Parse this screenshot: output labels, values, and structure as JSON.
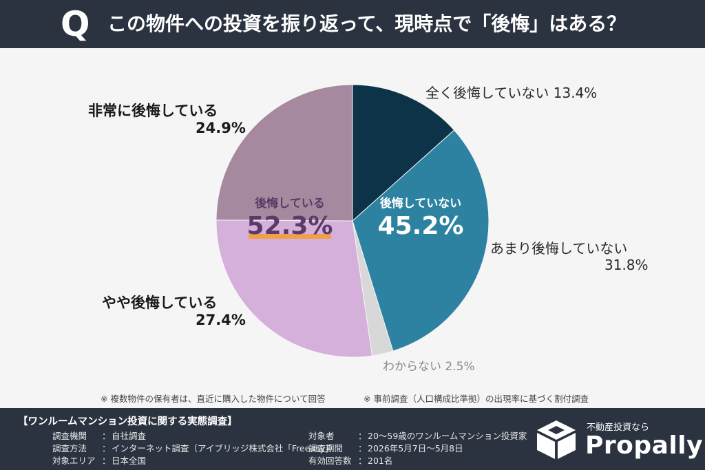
{
  "header": {
    "q": "Q",
    "question": "この物件への投資を振り返って、現時点で「後悔」はある？"
  },
  "chart_data": {
    "type": "pie",
    "start": "12 o'clock",
    "direction": "clockwise",
    "slices": [
      {
        "label": "全く後悔していない",
        "value": 13.4,
        "value_text": "13.4%",
        "color": "#0d3349"
      },
      {
        "label": "あまり後悔していない",
        "value": 31.8,
        "value_text": "31.8%",
        "color": "#2e82a1"
      },
      {
        "label": "わからない",
        "value": 2.5,
        "value_text": "2.5%",
        "color": "#d8d8d8"
      },
      {
        "label": "やや後悔している",
        "value": 27.4,
        "value_text": "27.4%",
        "color": "#d5b0da"
      },
      {
        "label": "非常に後悔している",
        "value": 24.9,
        "value_text": "24.9%",
        "color": "#a6899f"
      }
    ],
    "groups": [
      {
        "label": "後悔していない",
        "value_text": "45.2%",
        "color": "#ffffff"
      },
      {
        "label": "後悔している",
        "value_text": "52.3%",
        "color": "#5a3a66",
        "underline": "#f0a04b"
      }
    ]
  },
  "notes": {
    "left": "※ 複数物件の保有者は、直近に購入した物件について回答",
    "right": "※ 事前調査（人口構成比準拠）の出現率に基づく割付調査"
  },
  "footer": {
    "title": "【ワンルームマンション投資に関する実態調査】",
    "left": [
      {
        "k": "調査機関",
        "v": "自社調査"
      },
      {
        "k": "調査方法",
        "v": "インターネット調査（アイブリッジ株式会社「Freeasy」）"
      },
      {
        "k": "対象エリア",
        "v": "日本全国"
      }
    ],
    "right": [
      {
        "k": "対象者",
        "v": "20〜59歳のワンルームマンション投資家"
      },
      {
        "k": "調査期間",
        "v": "2026年5月7日〜5月8日"
      },
      {
        "k": "有効回答数",
        "v": "201名"
      }
    ],
    "brand_tag": "不動産投資なら",
    "brand_name": "Propally"
  }
}
